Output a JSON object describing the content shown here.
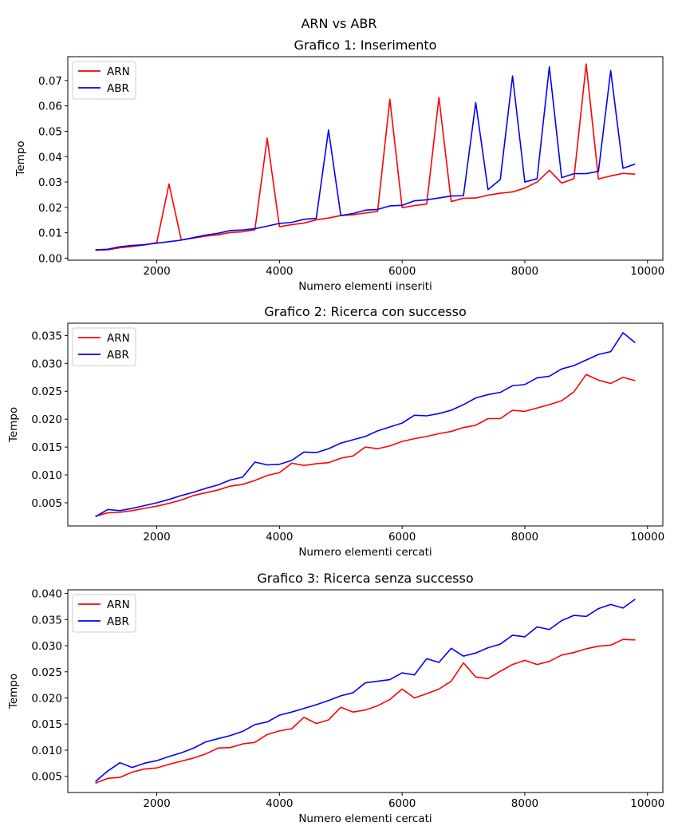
{
  "suptitle": "ARN vs ABR",
  "colors": {
    "ARN": "#ff0000",
    "ABR": "#0000ff"
  },
  "chart_data": [
    {
      "type": "line",
      "title": "Grafico 1: Inserimento",
      "xlabel": "Numero elementi inseriti",
      "ylabel": "Tempo",
      "xlim": [
        550,
        10250
      ],
      "ylim": [
        -0.0008,
        0.0794
      ],
      "xticks": [
        2000,
        4000,
        6000,
        8000,
        10000
      ],
      "xtick_labels": [
        "2000",
        "4000",
        "6000",
        "8000",
        "10000"
      ],
      "yticks": [
        0,
        0.01,
        0.02,
        0.03,
        0.04,
        0.05,
        0.06,
        0.07
      ],
      "ytick_labels": [
        "0.00",
        "0.01",
        "0.02",
        "0.03",
        "0.04",
        "0.05",
        "0.06",
        "0.07"
      ],
      "grid": false,
      "legend": "upper left",
      "x": [
        1000,
        1200,
        1400,
        1600,
        1800,
        2000,
        2200,
        2400,
        2600,
        2800,
        3000,
        3200,
        3400,
        3600,
        3800,
        4000,
        4200,
        4400,
        4600,
        4800,
        5000,
        5200,
        5400,
        5600,
        5800,
        6000,
        6200,
        6400,
        6600,
        6800,
        7000,
        7200,
        7400,
        7600,
        7800,
        8000,
        8200,
        8400,
        8600,
        8800,
        9000,
        9200,
        9400,
        9600,
        9800
      ],
      "series": [
        {
          "name": "ARN",
          "values": [
            0.0031,
            0.0033,
            0.0041,
            0.0046,
            0.0052,
            0.0061,
            0.0292,
            0.0072,
            0.0079,
            0.0087,
            0.0092,
            0.0101,
            0.0104,
            0.0112,
            0.0473,
            0.0124,
            0.0132,
            0.0138,
            0.0151,
            0.0158,
            0.0168,
            0.0171,
            0.0178,
            0.0184,
            0.0626,
            0.0199,
            0.0207,
            0.0213,
            0.0633,
            0.0223,
            0.0236,
            0.0237,
            0.0248,
            0.0256,
            0.0261,
            0.0276,
            0.03,
            0.0346,
            0.0296,
            0.0313,
            0.0765,
            0.0312,
            0.0324,
            0.0334,
            0.0331
          ]
        },
        {
          "name": "ABR",
          "values": [
            0.0033,
            0.0035,
            0.0045,
            0.005,
            0.0053,
            0.0059,
            0.0065,
            0.0071,
            0.0081,
            0.0091,
            0.0098,
            0.0109,
            0.0111,
            0.0116,
            0.0126,
            0.0137,
            0.0141,
            0.0153,
            0.0157,
            0.0505,
            0.0168,
            0.0176,
            0.0189,
            0.0192,
            0.0206,
            0.0208,
            0.0226,
            0.023,
            0.0237,
            0.0245,
            0.0246,
            0.0613,
            0.027,
            0.031,
            0.0718,
            0.03,
            0.0313,
            0.0754,
            0.0317,
            0.0333,
            0.0333,
            0.0342,
            0.0739,
            0.0354,
            0.0371
          ]
        }
      ]
    },
    {
      "type": "line",
      "title": "Grafico 2: Ricerca con successo",
      "xlabel": "Numero elementi cercati",
      "ylabel": "Tempo",
      "xlim": [
        550,
        10250
      ],
      "ylim": [
        0.00085,
        0.0372
      ],
      "xticks": [
        2000,
        4000,
        6000,
        8000,
        10000
      ],
      "xtick_labels": [
        "2000",
        "4000",
        "6000",
        "8000",
        "10000"
      ],
      "yticks": [
        0.005,
        0.01,
        0.015,
        0.02,
        0.025,
        0.03,
        0.035
      ],
      "ytick_labels": [
        "0.005",
        "0.010",
        "0.015",
        "0.020",
        "0.025",
        "0.030",
        "0.035"
      ],
      "grid": false,
      "legend": "upper left",
      "x": [
        1000,
        1200,
        1400,
        1600,
        1800,
        2000,
        2200,
        2400,
        2600,
        2800,
        3000,
        3200,
        3400,
        3600,
        3800,
        4000,
        4200,
        4400,
        4600,
        4800,
        5000,
        5200,
        5400,
        5600,
        5800,
        6000,
        6200,
        6400,
        6600,
        6800,
        7000,
        7200,
        7400,
        7600,
        7800,
        8000,
        8200,
        8400,
        8600,
        8800,
        9000,
        9200,
        9400,
        9600,
        9800
      ],
      "series": [
        {
          "name": "ARN",
          "values": [
            0.0026,
            0.0032,
            0.0033,
            0.0036,
            0.004,
            0.0044,
            0.0049,
            0.0055,
            0.0063,
            0.0068,
            0.0073,
            0.008,
            0.0083,
            0.009,
            0.0099,
            0.0104,
            0.0121,
            0.0117,
            0.012,
            0.0122,
            0.013,
            0.0134,
            0.015,
            0.0147,
            0.0152,
            0.016,
            0.0165,
            0.0169,
            0.0174,
            0.0178,
            0.0185,
            0.0189,
            0.0201,
            0.0201,
            0.0216,
            0.0214,
            0.022,
            0.0226,
            0.0233,
            0.0249,
            0.028,
            0.027,
            0.0264,
            0.0275,
            0.0269
          ]
        },
        {
          "name": "ABR",
          "values": [
            0.0025,
            0.0038,
            0.0036,
            0.004,
            0.0045,
            0.005,
            0.0056,
            0.0063,
            0.0069,
            0.0076,
            0.0082,
            0.0091,
            0.0096,
            0.0123,
            0.0118,
            0.0119,
            0.0126,
            0.0141,
            0.014,
            0.0147,
            0.0157,
            0.0163,
            0.0169,
            0.0179,
            0.0186,
            0.0193,
            0.0207,
            0.0206,
            0.021,
            0.0216,
            0.0226,
            0.0238,
            0.0244,
            0.0248,
            0.026,
            0.0262,
            0.0274,
            0.0277,
            0.029,
            0.0296,
            0.0306,
            0.0316,
            0.0321,
            0.0355,
            0.0337
          ]
        }
      ]
    },
    {
      "type": "line",
      "title": "Grafico 3: Ricerca senza successo",
      "xlabel": "Numero elementi cercati",
      "ylabel": "Tempo",
      "xlim": [
        550,
        10250
      ],
      "ylim": [
        0.0019,
        0.0407
      ],
      "xticks": [
        2000,
        4000,
        6000,
        8000,
        10000
      ],
      "xtick_labels": [
        "2000",
        "4000",
        "6000",
        "8000",
        "10000"
      ],
      "yticks": [
        0.005,
        0.01,
        0.015,
        0.02,
        0.025,
        0.03,
        0.035,
        0.04
      ],
      "ytick_labels": [
        "0.005",
        "0.010",
        "0.015",
        "0.020",
        "0.025",
        "0.030",
        "0.035",
        "0.040"
      ],
      "grid": false,
      "legend": "upper left",
      "x": [
        1000,
        1200,
        1400,
        1600,
        1800,
        2000,
        2200,
        2400,
        2600,
        2800,
        3000,
        3200,
        3400,
        3600,
        3800,
        4000,
        4200,
        4400,
        4600,
        4800,
        5000,
        5200,
        5400,
        5600,
        5800,
        6000,
        6200,
        6400,
        6600,
        6800,
        7000,
        7200,
        7400,
        7600,
        7800,
        8000,
        8200,
        8400,
        8600,
        8800,
        9000,
        9200,
        9400,
        9600,
        9800
      ],
      "series": [
        {
          "name": "ARN",
          "values": [
            0.0037,
            0.0046,
            0.0048,
            0.0058,
            0.0064,
            0.0066,
            0.0073,
            0.0079,
            0.0085,
            0.0093,
            0.0104,
            0.0105,
            0.0112,
            0.0115,
            0.013,
            0.0137,
            0.0141,
            0.0163,
            0.0151,
            0.0158,
            0.0182,
            0.0173,
            0.0177,
            0.0185,
            0.0197,
            0.0217,
            0.02,
            0.0208,
            0.0217,
            0.0232,
            0.0267,
            0.024,
            0.0237,
            0.0251,
            0.0264,
            0.0272,
            0.0264,
            0.027,
            0.0282,
            0.0287,
            0.0294,
            0.0299,
            0.0301,
            0.0312,
            0.0311
          ]
        },
        {
          "name": "ABR",
          "values": [
            0.004,
            0.006,
            0.0076,
            0.0067,
            0.0075,
            0.008,
            0.0088,
            0.0095,
            0.0104,
            0.0116,
            0.0122,
            0.0128,
            0.0136,
            0.0149,
            0.0154,
            0.0167,
            0.0173,
            0.018,
            0.0187,
            0.0195,
            0.0204,
            0.021,
            0.0229,
            0.0232,
            0.0235,
            0.0248,
            0.0244,
            0.0275,
            0.0268,
            0.0295,
            0.028,
            0.0286,
            0.0296,
            0.0303,
            0.032,
            0.0317,
            0.0336,
            0.0331,
            0.0348,
            0.0358,
            0.0356,
            0.0371,
            0.0379,
            0.0372,
            0.0389
          ]
        }
      ]
    }
  ]
}
